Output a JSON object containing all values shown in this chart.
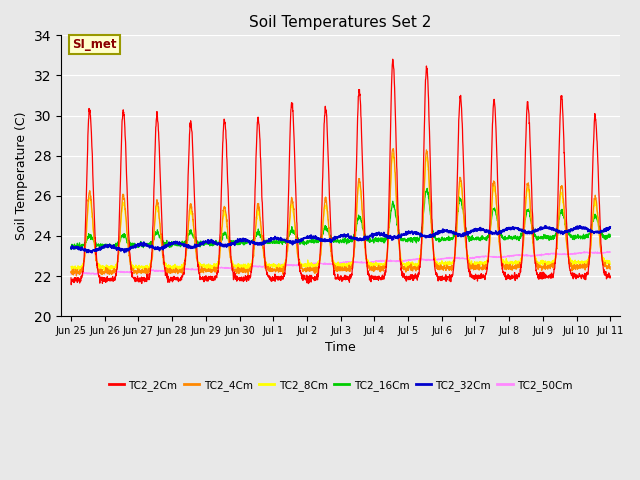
{
  "title": "Soil Temperatures Set 2",
  "xlabel": "Time",
  "ylabel": "Soil Temperature (C)",
  "ylim": [
    20,
    34
  ],
  "yticks": [
    20,
    22,
    24,
    26,
    28,
    30,
    32,
    34
  ],
  "annotation": "SI_met",
  "xtick_labels": [
    "Jun 25",
    "Jun 26",
    "Jun 27",
    "Jun 28",
    "Jun 29",
    "Jun 30",
    "Jul 1",
    "Jul 2",
    "Jul 3",
    "Jul 4",
    "Jul 5",
    "Jul 6",
    "Jul 7",
    "Jul 8",
    "Jul 9",
    "Jul 10",
    "Jul 11"
  ],
  "series_colors": {
    "TC2_2Cm": "#ff0000",
    "TC2_4Cm": "#ff8800",
    "TC2_8Cm": "#ffff00",
    "TC2_16Cm": "#00cc00",
    "TC2_32Cm": "#0000cc",
    "TC2_50Cm": "#ff88ff"
  },
  "background_color": "#e8e8e8",
  "plot_bg_color": "#ebebeb",
  "title_fontsize": 11,
  "axis_label_fontsize": 9
}
